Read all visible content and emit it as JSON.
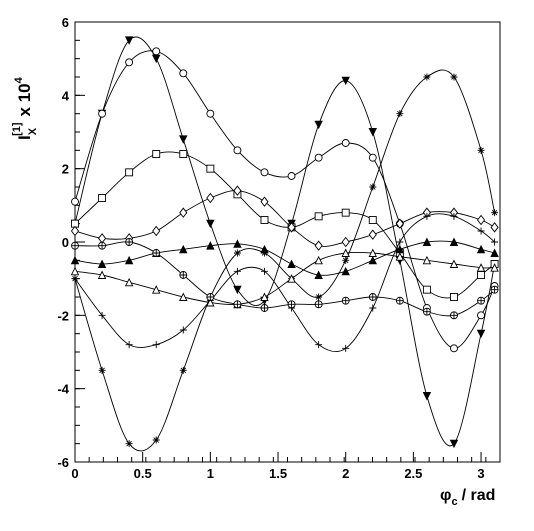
{
  "chart_data": {
    "type": "line",
    "x": [
      0,
      0.2,
      0.4,
      0.6,
      0.8,
      1.0,
      1.2,
      1.4,
      1.6,
      1.8,
      2.0,
      2.2,
      2.4,
      2.6,
      2.8,
      3.0,
      3.1
    ],
    "xlim": [
      0,
      3.14
    ],
    "xticks": [
      0,
      0.5,
      1,
      1.5,
      2,
      2.5,
      3
    ],
    "ylim": [
      -6,
      6
    ],
    "yticks": [
      -6,
      -4,
      -2,
      0,
      2,
      4,
      6
    ],
    "xlabel": {
      "base": "φ",
      "sub": "c",
      "rest": "/ rad"
    },
    "ylabel": {
      "base": "I",
      "sub": "X",
      "sup": "[1]",
      "mult": "x 10",
      "exp": "4"
    },
    "series": [
      {
        "color": "#000000",
        "marker": "triangle-down-filled",
        "values": [
          0.5,
          3.5,
          5.5,
          5.0,
          2.8,
          0.5,
          -1.3,
          -1.6,
          0.5,
          3.2,
          4.4,
          3.0,
          -0.5,
          -4.2,
          -5.5,
          -2.5,
          -0.6
        ]
      },
      {
        "color": "#000000",
        "marker": "circle",
        "values": [
          1.1,
          3.5,
          4.9,
          5.2,
          4.6,
          3.5,
          2.5,
          1.9,
          1.8,
          2.3,
          2.7,
          2.3,
          0.5,
          -1.8,
          -2.9,
          -2.0,
          -1.2
        ]
      },
      {
        "color": "#000000",
        "marker": "square",
        "values": [
          0.5,
          1.2,
          1.9,
          2.4,
          2.4,
          2.0,
          1.3,
          0.6,
          0.4,
          0.7,
          0.8,
          0.6,
          -0.3,
          -1.3,
          -1.5,
          -0.9,
          -0.6
        ]
      },
      {
        "color": "#000000",
        "marker": "asterisk",
        "values": [
          -1.0,
          -3.5,
          -5.5,
          -5.4,
          -3.5,
          -1.5,
          -0.3,
          -0.3,
          -1.0,
          -1.5,
          -0.5,
          1.5,
          3.5,
          4.5,
          4.5,
          2.5,
          0.8
        ]
      },
      {
        "color": "#000000",
        "marker": "diamond",
        "values": [
          0.3,
          0.1,
          0.1,
          0.3,
          0.8,
          1.2,
          1.4,
          1.1,
          0.4,
          -0.1,
          0.0,
          0.2,
          0.5,
          0.8,
          0.8,
          0.6,
          0.4
        ]
      },
      {
        "color": "#000000",
        "marker": "plus",
        "values": [
          -1.0,
          -2.0,
          -2.8,
          -2.8,
          -2.4,
          -1.6,
          -0.8,
          -0.8,
          -1.8,
          -2.8,
          -2.9,
          -1.8,
          0.0,
          0.7,
          0.7,
          0.3,
          0.0
        ]
      },
      {
        "color": "#000000",
        "marker": "triangle-up-filled",
        "values": [
          -0.5,
          -0.6,
          -0.5,
          -0.3,
          -0.2,
          -0.1,
          -0.05,
          -0.2,
          -0.6,
          -0.9,
          -0.8,
          -0.5,
          -0.2,
          0.0,
          0.0,
          -0.2,
          -0.3
        ]
      },
      {
        "color": "#000000",
        "marker": "triangle-up",
        "values": [
          -0.8,
          -0.9,
          -1.1,
          -1.3,
          -1.5,
          -1.65,
          -1.7,
          -1.5,
          -1.0,
          -0.5,
          -0.3,
          -0.3,
          -0.4,
          -0.5,
          -0.6,
          -0.7,
          -0.7
        ]
      },
      {
        "color": "#000000",
        "marker": "cross-circle",
        "values": [
          -0.1,
          -0.1,
          0.0,
          -0.3,
          -0.9,
          -1.5,
          -1.7,
          -1.8,
          -1.7,
          -1.7,
          -1.6,
          -1.5,
          -1.6,
          -1.9,
          -2.0,
          -1.6,
          -1.3
        ]
      }
    ]
  }
}
